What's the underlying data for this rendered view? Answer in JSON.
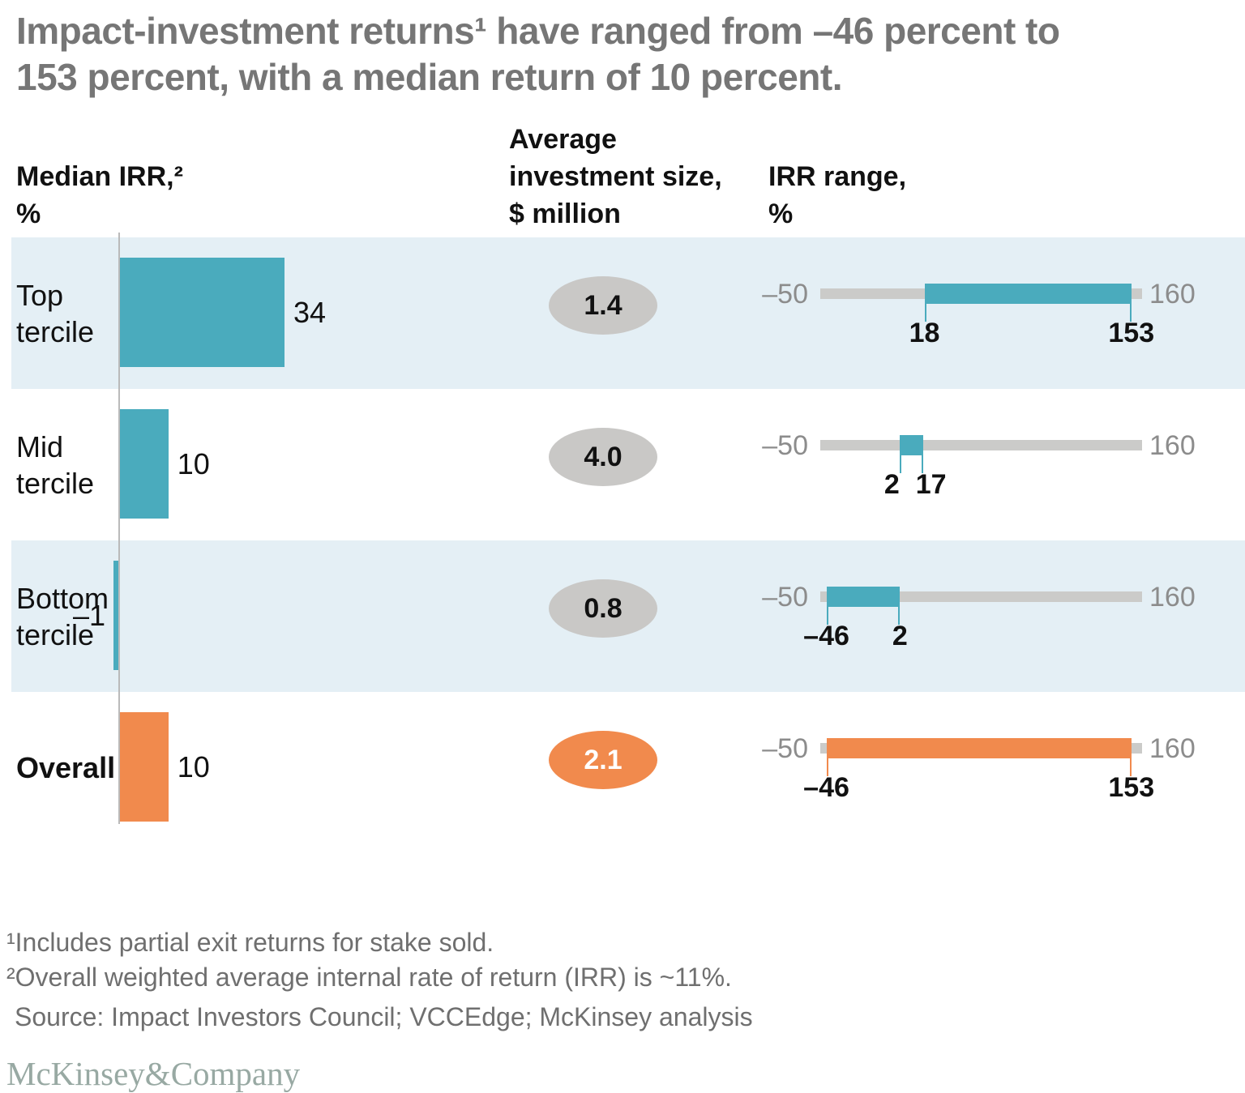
{
  "title_lines": [
    "Impact-investment returns¹ have ranged from –46 percent to",
    "153 percent, with a median return of 10 percent."
  ],
  "columns": [
    {
      "lines": [
        "Median IRR,²",
        "%"
      ]
    },
    {
      "lines": [
        "Average",
        "investment size,",
        "$ million"
      ]
    },
    {
      "lines": [
        "IRR range,",
        "%"
      ]
    }
  ],
  "rows": [
    {
      "label_lines": [
        "Top",
        "tercile"
      ],
      "median": 34,
      "median_label": "34",
      "avg_label": "1.4",
      "range_min": 18,
      "range_max": 153,
      "range_min_label": "18",
      "range_max_label": "153",
      "axis_min_label": "–50",
      "axis_max_label": "160",
      "accent": "teal",
      "band": "blue",
      "ellipse": "gray"
    },
    {
      "label_lines": [
        "Mid",
        "tercile"
      ],
      "median": 10,
      "median_label": "10",
      "avg_label": "4.0",
      "range_min": 2,
      "range_max": 17,
      "range_min_label": "2",
      "range_max_label": "17",
      "axis_min_label": "–50",
      "axis_max_label": "160",
      "accent": "teal",
      "band": "white",
      "ellipse": "gray"
    },
    {
      "label_lines": [
        "Bottom",
        "tercile"
      ],
      "median": -1,
      "median_label": "–1",
      "avg_label": "0.8",
      "range_min": -46,
      "range_max": 2,
      "range_min_label": "–46",
      "range_max_label": "2",
      "axis_min_label": "–50",
      "axis_max_label": "160",
      "accent": "teal",
      "band": "blue",
      "ellipse": "gray"
    },
    {
      "label_lines": [
        "Overall"
      ],
      "median": 10,
      "median_label": "10",
      "avg_label": "2.1",
      "range_min": -46,
      "range_max": 153,
      "range_min_label": "–46",
      "range_max_label": "153",
      "axis_min_label": "–50",
      "axis_max_label": "160",
      "accent": "orange",
      "band": "white",
      "ellipse": "orange"
    }
  ],
  "chart_data": {
    "type": "bar",
    "categories": [
      "Top tercile",
      "Mid tercile",
      "Bottom tercile",
      "Overall"
    ],
    "series": [
      {
        "name": "Median IRR, %",
        "values": [
          34,
          10,
          -1,
          10
        ]
      },
      {
        "name": "Average investment size, $ million",
        "values": [
          1.4,
          4.0,
          0.8,
          2.1
        ]
      },
      {
        "name": "IRR range min, %",
        "values": [
          18,
          2,
          -46,
          -46
        ]
      },
      {
        "name": "IRR range max, %",
        "values": [
          153,
          17,
          2,
          153
        ]
      }
    ],
    "title": "Impact-investment returns have ranged from –46 percent to 153 percent, with a median return of 10 percent.",
    "range_axis": {
      "min": -50,
      "max": 160,
      "min_label": "–50",
      "max_label": "160"
    },
    "grid": false,
    "legend": false
  },
  "footnotes": [
    "¹Includes partial exit returns for stake sold.",
    "²Overall weighted average internal rate of return (IRR) is ~11%."
  ],
  "source": "Source: Impact Investors Council; VCCEdge; McKinsey analysis",
  "logo": "McKinsey&Company",
  "colors": {
    "teal": "#4AABBD",
    "orange": "#F18A4D",
    "band_blue": "#E4EFF5",
    "track_gray": "#CBCBC9",
    "ellipse_gray": "#C9C8C6",
    "title_gray": "#767676",
    "footnote_gray": "#6F6F6F",
    "axis_label_gray": "#8C8C8C",
    "logo_gray_green": "#98A9A3"
  }
}
